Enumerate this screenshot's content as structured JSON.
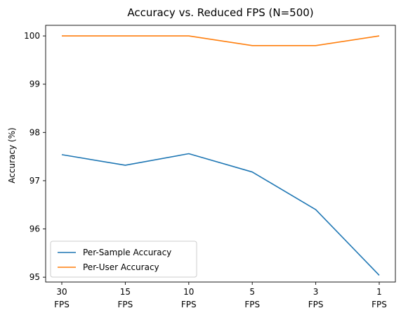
{
  "chart_data": {
    "type": "line",
    "title": "Accuracy vs. Reduced FPS (N=500)",
    "xlabel": "",
    "ylabel": "Accuracy (%)",
    "categories": [
      [
        "30",
        "FPS"
      ],
      [
        "15",
        "FPS"
      ],
      [
        "10",
        "FPS"
      ],
      [
        "5",
        "FPS"
      ],
      [
        "3",
        "FPS"
      ],
      [
        "1",
        "FPS"
      ]
    ],
    "ylim": [
      94.9,
      100.22
    ],
    "yticks": [
      "95",
      "96",
      "97",
      "98",
      "99",
      "100"
    ],
    "grid": false,
    "legend_position": "lower-left",
    "series": [
      {
        "name": "Per-Sample Accuracy",
        "color": "#1f77b4",
        "values": [
          97.54,
          97.32,
          97.56,
          97.18,
          96.4,
          95.04
        ]
      },
      {
        "name": "Per-User Accuracy",
        "color": "#ff7f0e",
        "values": [
          100.0,
          100.0,
          100.0,
          99.8,
          99.8,
          100.0
        ]
      }
    ]
  }
}
